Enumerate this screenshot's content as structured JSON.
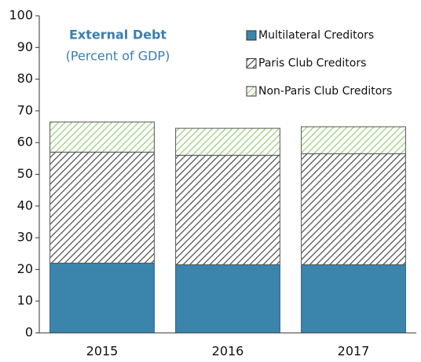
{
  "chart_data": {
    "type": "stacked_bar",
    "title": "External Debt",
    "subtitle": "(Percent of GDP)",
    "categories": [
      "2015",
      "2016",
      "2017"
    ],
    "series": [
      {
        "name": "Multilateral Creditors",
        "color": "#3b85ad",
        "pattern": "solid",
        "values": [
          22,
          21.5,
          21.5
        ]
      },
      {
        "name": "Paris Club Creditors",
        "color": "#555555",
        "pattern": "hatch",
        "values": [
          35,
          34.5,
          35
        ]
      },
      {
        "name": "Non-Paris Club Creditors",
        "color": "#9ccf7e",
        "pattern": "hatch",
        "values": [
          9.5,
          8.5,
          8.5
        ]
      }
    ],
    "ylim": [
      0,
      100
    ],
    "yticks": [
      0,
      10,
      20,
      30,
      40,
      50,
      60,
      70,
      80,
      90,
      100
    ],
    "grid": false
  }
}
